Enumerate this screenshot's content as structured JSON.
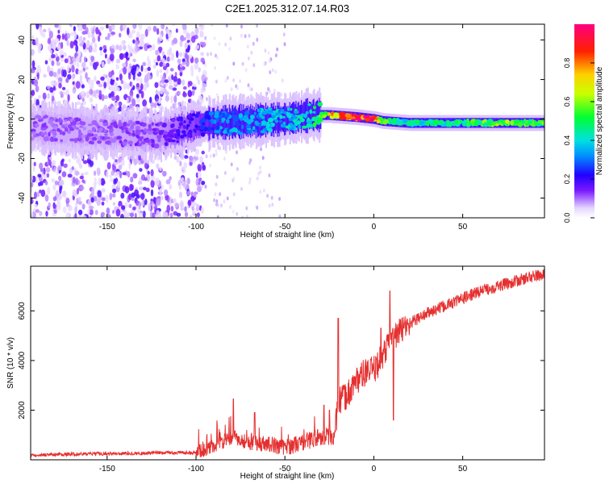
{
  "title": "C2E1.2025.312.07.14.R03",
  "chart_data": [
    {
      "type": "heatmap",
      "title": "C2E1.2025.312.07.14.R03",
      "xlabel": "Height of straight line (km)",
      "ylabel": "Frequency (Hz)",
      "xlim": [
        -193,
        96
      ],
      "ylim": [
        -50,
        48
      ],
      "xticks": [
        -150,
        -100,
        -50,
        0,
        50
      ],
      "yticks": [
        -40,
        -20,
        0,
        20,
        40
      ],
      "colorbar": {
        "label": "Normalized spectral amplitude",
        "range": [
          0.0,
          1.0
        ],
        "ticks": [
          "0.0",
          "0.2",
          "0.4",
          "0.6",
          "0.8"
        ],
        "tick_values": [
          0.0,
          0.2,
          0.4,
          0.6,
          0.8
        ]
      },
      "ridge": [
        {
          "x": -193,
          "freq": -4,
          "amp": 0.12
        },
        {
          "x": -150,
          "freq": -7,
          "amp": 0.12
        },
        {
          "x": -120,
          "freq": -8,
          "amp": 0.14
        },
        {
          "x": -100,
          "freq": -3,
          "amp": 0.22
        },
        {
          "x": -90,
          "freq": -2,
          "amp": 0.32
        },
        {
          "x": -70,
          "freq": -1,
          "amp": 0.36
        },
        {
          "x": -50,
          "freq": 0,
          "amp": 0.4
        },
        {
          "x": -35,
          "freq": 2,
          "amp": 0.45
        },
        {
          "x": -25,
          "freq": 2,
          "amp": 0.72
        },
        {
          "x": -10,
          "freq": 1,
          "amp": 0.95
        },
        {
          "x": 0,
          "freq": 0,
          "amp": 0.95
        },
        {
          "x": 5,
          "freq": -1,
          "amp": 0.55
        },
        {
          "x": 20,
          "freq": -2,
          "amp": 0.45
        },
        {
          "x": 50,
          "freq": -2,
          "amp": 0.52
        },
        {
          "x": 70,
          "freq": -2,
          "amp": 0.6
        },
        {
          "x": 96,
          "freq": -2,
          "amp": 0.55
        }
      ]
    },
    {
      "type": "line",
      "xlabel": "Height of straight line (km)",
      "ylabel": "SNR (10 * v/v)",
      "xlim": [
        -193,
        96
      ],
      "ylim": [
        0,
        7800
      ],
      "xticks": [
        -150,
        -100,
        -50,
        0,
        50
      ],
      "yticks": [
        2000,
        4000,
        6000
      ],
      "color": "#e53030",
      "series": [
        {
          "name": "SNR",
          "x": [
            -193,
            -150,
            -100,
            -90,
            -80,
            -70,
            -60,
            -50,
            -40,
            -30,
            -22,
            -20,
            -15,
            -10,
            -5,
            0,
            5,
            10,
            20,
            30,
            40,
            50,
            60,
            70,
            80,
            90,
            96
          ],
          "values": [
            200,
            250,
            300,
            550,
            900,
            700,
            650,
            500,
            700,
            950,
            950,
            2300,
            2600,
            3200,
            3500,
            3600,
            4200,
            4900,
            5500,
            5900,
            6200,
            6500,
            6800,
            7000,
            7200,
            7400,
            7450
          ]
        }
      ],
      "spikes": [
        {
          "x": -79,
          "value": 2450
        },
        {
          "x": -67,
          "value": 1900
        },
        {
          "x": -28,
          "value": 2200
        },
        {
          "x": -25,
          "value": 2000
        },
        {
          "x": -20,
          "value": 5700
        },
        {
          "x": 4,
          "value": 5300
        },
        {
          "x": 9,
          "value": 6800
        },
        {
          "x": 11,
          "value": 1600
        },
        {
          "x": 17,
          "value": 5300
        }
      ]
    }
  ]
}
